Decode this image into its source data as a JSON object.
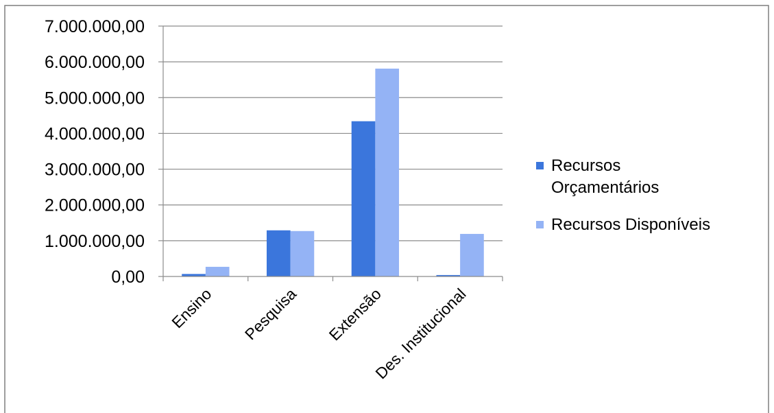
{
  "chart_data": {
    "type": "bar",
    "title": "",
    "xlabel": "",
    "ylabel": "",
    "categories": [
      "Ensino",
      "Pesquisa",
      "Extensão",
      "Des. Institucional"
    ],
    "series": [
      {
        "name": "Recursos Orçamentários",
        "name_lines": [
          "Recursos",
          "Orçamentários"
        ],
        "values": [
          70000,
          1290000,
          4340000,
          40000
        ],
        "color": "#3b76dc"
      },
      {
        "name": "Recursos Disponíveis",
        "name_lines": [
          "Recursos Disponíveis"
        ],
        "values": [
          270000,
          1270000,
          5810000,
          1190000
        ],
        "color": "#94b3f5"
      }
    ],
    "ylim": [
      0,
      7000000
    ],
    "yticks": [
      0,
      1000000,
      2000000,
      3000000,
      4000000,
      5000000,
      6000000,
      7000000
    ],
    "ytick_labels": [
      "0,00",
      "1.000.000,00",
      "2.000.000,00",
      "3.000.000,00",
      "4.000.000,00",
      "5.000.000,00",
      "6.000.000,00",
      "7.000.000,00"
    ],
    "grid": "horizontal",
    "legend_position": "right"
  }
}
